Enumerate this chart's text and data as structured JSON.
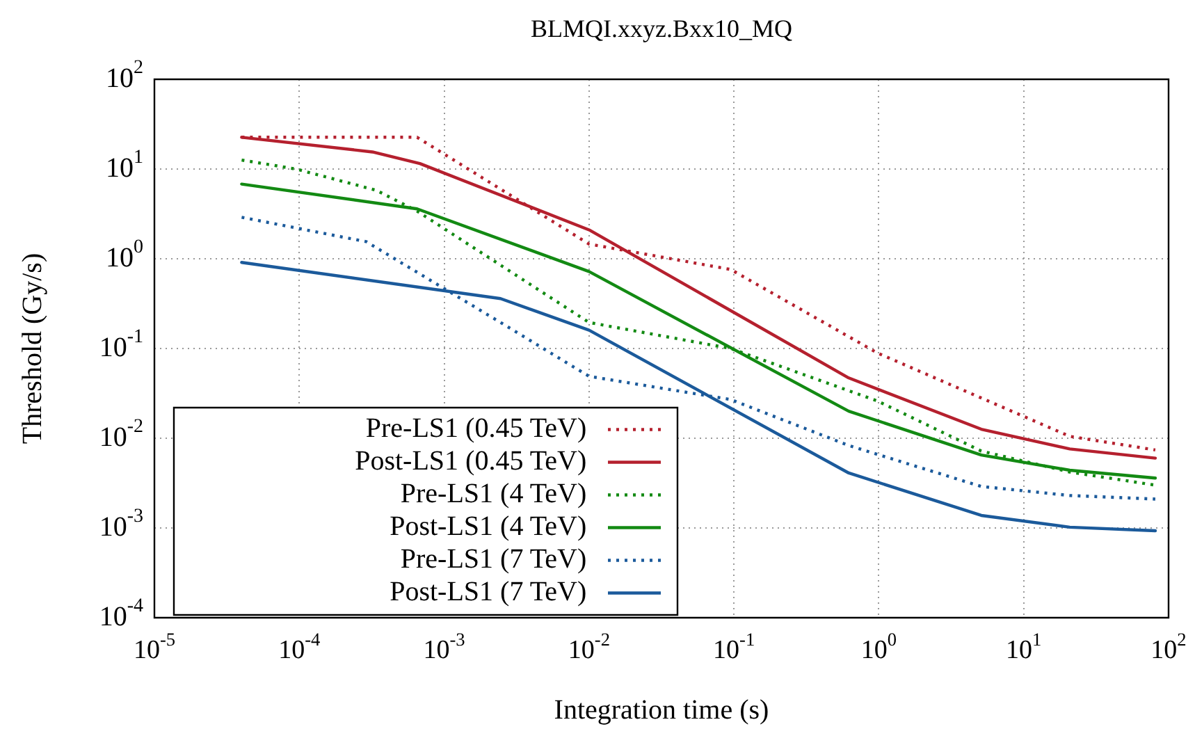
{
  "chart_data": {
    "type": "line",
    "title": "BLMQI.xxyz.Bxx10_MQ",
    "xlabel": "Integration time (s)",
    "ylabel": "Threshold (Gy/s)",
    "log": "xy",
    "grid": true,
    "legend": "bottom left",
    "marker": "none",
    "xlim": [
      1e-05,
      100
    ],
    "ylim": [
      0.0001,
      100
    ],
    "xticks": [
      {
        "value": 1e-05,
        "label": "10$^{-5}$"
      },
      {
        "value": 0.0001,
        "label": "10$^{-4}$"
      },
      {
        "value": 0.001,
        "label": "10$^{-3}$"
      },
      {
        "value": 0.01,
        "label": "10$^{-2}$"
      },
      {
        "value": 0.1,
        "label": "10$^{-1}$"
      },
      {
        "value": 1,
        "label": "10$^{0}$"
      },
      {
        "value": 10,
        "label": "10$^{1}$"
      },
      {
        "value": 100,
        "label": "10$^{2}$"
      }
    ],
    "yticks": [
      {
        "value": 0.0001,
        "label": "10$^{-4}$"
      },
      {
        "value": 0.001,
        "label": "10$^{-3}$"
      },
      {
        "value": 0.01,
        "label": "10$^{-2}$"
      },
      {
        "value": 0.1,
        "label": "10$^{-1}$"
      },
      {
        "value": 1,
        "label": "10$^{0}$"
      },
      {
        "value": 10,
        "label": "10$^{1}$"
      },
      {
        "value": 100,
        "label": "10$^{2}$"
      }
    ],
    "series": [
      {
        "name": "Pre-LS1 (0.45 TeV)",
        "color": "#b5202e",
        "line_style": "dotted",
        "x": [
          4e-05,
          0.00065,
          0.01,
          0.095,
          0.98,
          20.8,
          81
        ],
        "values": [
          22.6,
          22.6,
          1.46,
          0.76,
          0.089,
          0.0105,
          0.0074
        ]
      },
      {
        "name": "Post-LS1 (0.45 TeV)",
        "color": "#b5202e",
        "line_style": "solid",
        "x": [
          4e-05,
          0.00032,
          0.00068,
          0.01,
          0.62,
          5.1,
          20.8,
          81
        ],
        "values": [
          22.6,
          15.5,
          11.5,
          2.1,
          0.047,
          0.0126,
          0.0076,
          0.006
        ]
      },
      {
        "name": "Pre-LS1 (4 TeV)",
        "color": "#138a13",
        "line_style": "dotted",
        "x": [
          4e-05,
          9.5e-05,
          0.00034,
          0.00065,
          0.01,
          0.095,
          0.98,
          5.1,
          20.8,
          81
        ],
        "values": [
          12.6,
          10,
          5.8,
          3.4,
          0.195,
          0.1,
          0.026,
          0.0072,
          0.0042,
          0.003
        ]
      },
      {
        "name": "Post-LS1 (4 TeV)",
        "color": "#138a13",
        "line_style": "solid",
        "x": [
          4e-05,
          0.00065,
          0.01,
          0.62,
          5.1,
          20.8,
          81
        ],
        "values": [
          6.8,
          3.6,
          0.72,
          0.02,
          0.0065,
          0.0044,
          0.0036
        ]
      },
      {
        "name": "Pre-LS1 (7 TeV)",
        "color": "#1b5a9b",
        "line_style": "dotted",
        "x": [
          4e-05,
          0.00029,
          0.00245,
          0.01,
          0.095,
          0.62,
          5.1,
          20.8,
          81
        ],
        "values": [
          2.9,
          1.55,
          0.195,
          0.049,
          0.027,
          0.0083,
          0.0029,
          0.0023,
          0.0021
        ]
      },
      {
        "name": "Post-LS1 (7 TeV)",
        "color": "#1b5a9b",
        "line_style": "solid",
        "x": [
          4e-05,
          0.00245,
          0.01,
          0.62,
          5.1,
          20.8,
          81
        ],
        "values": [
          0.91,
          0.36,
          0.16,
          0.0041,
          0.00138,
          0.00102,
          0.00093
        ]
      }
    ]
  }
}
